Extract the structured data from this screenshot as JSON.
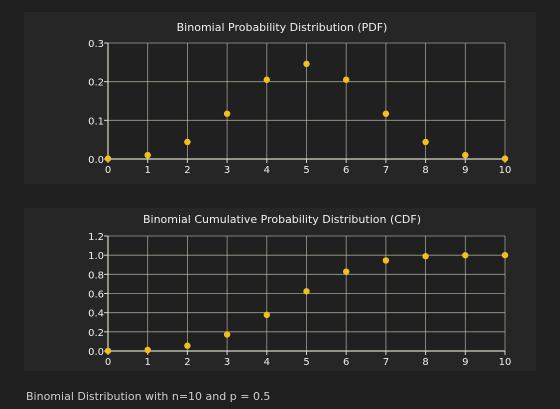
{
  "footer": {
    "text": "Binomial Distribution with n=10 and p = 0.5"
  },
  "colors": {
    "background": "#1f1f1f",
    "panel": "#262626",
    "plot": "#202020",
    "grid": "#c9c9b6",
    "axis": "#d8d8c8",
    "point": "#f2c01e",
    "text": "#f0f0f0"
  },
  "chart_data": [
    {
      "type": "scatter",
      "title": "Binomial Probability Distribution (PDF)",
      "xlabel": "",
      "ylabel": "",
      "xlim": [
        0,
        10
      ],
      "ylim": [
        0,
        0.3
      ],
      "x_ticks": [
        0,
        1,
        2,
        3,
        4,
        5,
        6,
        7,
        8,
        9,
        10
      ],
      "x_tick_labels": [
        "0",
        "1",
        "2",
        "3",
        "4",
        "5",
        "6",
        "7",
        "8",
        "9",
        "10"
      ],
      "y_ticks": [
        0,
        0.1,
        0.2,
        0.3
      ],
      "y_tick_labels": [
        "0.0",
        "0.1",
        "0.2",
        "0.3"
      ],
      "grid": true,
      "series": [
        {
          "x": [
            0,
            1,
            2,
            3,
            4,
            5,
            6,
            7,
            8,
            9,
            10
          ],
          "y": [
            0.001,
            0.01,
            0.044,
            0.117,
            0.205,
            0.246,
            0.205,
            0.117,
            0.044,
            0.01,
            0.001
          ]
        }
      ]
    },
    {
      "type": "scatter",
      "title": "Binomial Cumulative Probability Distribution (CDF)",
      "xlabel": "",
      "ylabel": "",
      "xlim": [
        0,
        10
      ],
      "ylim": [
        0,
        1.2
      ],
      "x_ticks": [
        0,
        1,
        2,
        3,
        4,
        5,
        6,
        7,
        8,
        9,
        10
      ],
      "x_tick_labels": [
        "0",
        "1",
        "2",
        "3",
        "4",
        "5",
        "6",
        "7",
        "8",
        "9",
        "10"
      ],
      "y_ticks": [
        0,
        0.2,
        0.4,
        0.6,
        0.8,
        1.0,
        1.2
      ],
      "y_tick_labels": [
        "0.0",
        "0.2",
        "0.4",
        "0.6",
        "0.8",
        "1.0",
        "1.2"
      ],
      "grid": true,
      "series": [
        {
          "x": [
            0,
            1,
            2,
            3,
            4,
            5,
            6,
            7,
            8,
            9,
            10
          ],
          "y": [
            0.001,
            0.011,
            0.055,
            0.172,
            0.377,
            0.623,
            0.828,
            0.945,
            0.989,
            0.999,
            1.0
          ]
        }
      ]
    }
  ]
}
